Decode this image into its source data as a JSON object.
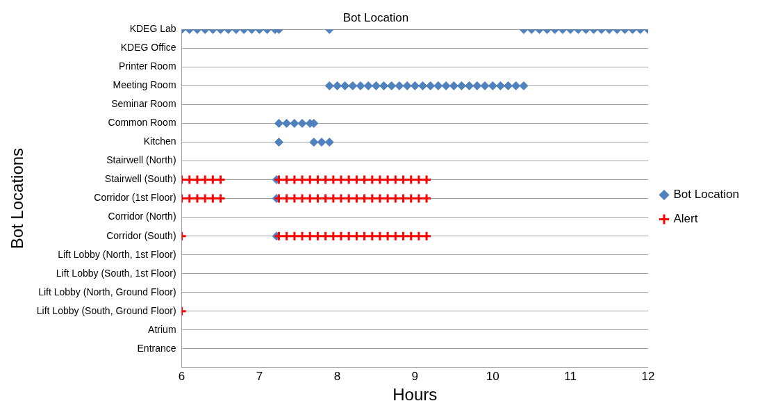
{
  "chart_data": {
    "type": "scatter",
    "orientation": "horizontal",
    "title": "Bot Location",
    "xlabel": "Hours",
    "ylabel": "Bot Locations",
    "xlim": [
      6,
      12
    ],
    "xticks": [
      6,
      7,
      8,
      9,
      10,
      11,
      12
    ],
    "categories": [
      "KDEG Lab",
      "KDEG Office",
      "Printer Room",
      "Meeting Room",
      "Seminar Room",
      "Common Room",
      "Kitchen",
      "Stairwell (North)",
      "Stairwell (South)",
      "Corridor (1st Floor)",
      "Corridor (North)",
      "Corridor (South)",
      "Lift Lobby (North, 1st Floor)",
      "Lift Lobby (South, 1st Floor)",
      "Lift Lobby (North, Ground Floor)",
      "Lift Lobby (South, Ground Floor)",
      "Atrium",
      "Entrance"
    ],
    "grid": "y",
    "legend": "right",
    "series": [
      {
        "name": "Bot Location",
        "color": "#4f81bd",
        "marker": "diamond",
        "x": [
          "KDEG Lab",
          "KDEG Lab",
          "KDEG Lab",
          "KDEG Lab",
          "KDEG Lab",
          "KDEG Lab",
          "KDEG Lab",
          "KDEG Lab",
          "KDEG Lab",
          "KDEG Lab",
          "KDEG Lab",
          "KDEG Lab",
          "KDEG Lab",
          "KDEG Lab",
          "KDEG Lab",
          "KDEG Lab",
          "KDEG Lab",
          "KDEG Lab",
          "KDEG Lab",
          "KDEG Lab",
          "KDEG Lab",
          "KDEG Lab",
          "KDEG Lab",
          "KDEG Lab",
          "KDEG Lab",
          "KDEG Lab",
          "KDEG Lab",
          "KDEG Lab",
          "KDEG Lab",
          "KDEG Lab",
          "KDEG Lab",
          "KDEG Lab",
          "Meeting Room",
          "Meeting Room",
          "Meeting Room",
          "Meeting Room",
          "Meeting Room",
          "Meeting Room",
          "Meeting Room",
          "Meeting Room",
          "Meeting Room",
          "Meeting Room",
          "Meeting Room",
          "Meeting Room",
          "Meeting Room",
          "Meeting Room",
          "Meeting Room",
          "Meeting Room",
          "Meeting Room",
          "Meeting Room",
          "Meeting Room",
          "Meeting Room",
          "Meeting Room",
          "Meeting Room",
          "Meeting Room",
          "Meeting Room",
          "Meeting Room",
          "Meeting Room",
          "Common Room",
          "Common Room",
          "Common Room",
          "Common Room",
          "Common Room",
          "Common Room",
          "Kitchen",
          "Kitchen",
          "Kitchen",
          "Kitchen",
          "Stairwell (South)",
          "Corridor (1st Floor)",
          "Corridor (South)"
        ],
        "values": [
          6.0,
          6.1,
          6.2,
          6.3,
          6.4,
          6.5,
          6.6,
          6.7,
          6.8,
          6.9,
          7.0,
          7.1,
          7.2,
          7.25,
          7.9,
          10.4,
          10.5,
          10.6,
          10.7,
          10.8,
          10.9,
          11.0,
          11.1,
          11.2,
          11.3,
          11.4,
          11.5,
          11.6,
          11.7,
          11.8,
          11.9,
          12.0,
          7.9,
          8.0,
          8.1,
          8.2,
          8.3,
          8.4,
          8.5,
          8.6,
          8.7,
          8.8,
          8.9,
          9.0,
          9.1,
          9.2,
          9.3,
          9.4,
          9.5,
          9.6,
          9.7,
          9.8,
          9.9,
          10.0,
          10.1,
          10.2,
          10.3,
          10.4,
          7.25,
          7.35,
          7.45,
          7.55,
          7.65,
          7.7,
          7.25,
          7.7,
          7.8,
          7.9,
          7.22,
          7.22,
          7.22
        ]
      },
      {
        "name": "Alert",
        "color": "#ff0000",
        "marker": "cross",
        "x": [
          "Stairwell (South)",
          "Stairwell (South)",
          "Stairwell (South)",
          "Stairwell (South)",
          "Stairwell (South)",
          "Stairwell (South)",
          "Stairwell (South)",
          "Stairwell (South)",
          "Stairwell (South)",
          "Stairwell (South)",
          "Stairwell (South)",
          "Stairwell (South)",
          "Stairwell (South)",
          "Stairwell (South)",
          "Stairwell (South)",
          "Stairwell (South)",
          "Stairwell (South)",
          "Stairwell (South)",
          "Stairwell (South)",
          "Stairwell (South)",
          "Stairwell (South)",
          "Stairwell (South)",
          "Stairwell (South)",
          "Stairwell (South)",
          "Stairwell (South)",
          "Stairwell (South)",
          "Corridor (1st Floor)",
          "Corridor (1st Floor)",
          "Corridor (1st Floor)",
          "Corridor (1st Floor)",
          "Corridor (1st Floor)",
          "Corridor (1st Floor)",
          "Corridor (1st Floor)",
          "Corridor (1st Floor)",
          "Corridor (1st Floor)",
          "Corridor (1st Floor)",
          "Corridor (1st Floor)",
          "Corridor (1st Floor)",
          "Corridor (1st Floor)",
          "Corridor (1st Floor)",
          "Corridor (1st Floor)",
          "Corridor (1st Floor)",
          "Corridor (1st Floor)",
          "Corridor (1st Floor)",
          "Corridor (1st Floor)",
          "Corridor (1st Floor)",
          "Corridor (1st Floor)",
          "Corridor (1st Floor)",
          "Corridor (1st Floor)",
          "Corridor (1st Floor)",
          "Corridor (1st Floor)",
          "Corridor (1st Floor)",
          "Corridor (South)",
          "Corridor (South)",
          "Corridor (South)",
          "Corridor (South)",
          "Corridor (South)",
          "Corridor (South)",
          "Corridor (South)",
          "Corridor (South)",
          "Corridor (South)",
          "Corridor (South)",
          "Corridor (South)",
          "Corridor (South)",
          "Corridor (South)",
          "Corridor (South)",
          "Corridor (South)",
          "Corridor (South)",
          "Corridor (South)",
          "Corridor (South)",
          "Corridor (South)",
          "Corridor (South)",
          "Corridor (South)",
          "Lift Lobby (South, Ground Floor)"
        ],
        "values": [
          6.0,
          6.1,
          6.2,
          6.3,
          6.4,
          6.5,
          7.25,
          7.35,
          7.45,
          7.55,
          7.65,
          7.75,
          7.85,
          7.95,
          8.05,
          8.15,
          8.25,
          8.35,
          8.45,
          8.55,
          8.65,
          8.75,
          8.85,
          8.95,
          9.05,
          9.15,
          6.0,
          6.1,
          6.2,
          6.3,
          6.4,
          6.5,
          7.25,
          7.35,
          7.45,
          7.55,
          7.65,
          7.75,
          7.85,
          7.95,
          8.05,
          8.15,
          8.25,
          8.35,
          8.45,
          8.55,
          8.65,
          8.75,
          8.85,
          8.95,
          9.05,
          9.15,
          6.0,
          7.25,
          7.35,
          7.45,
          7.55,
          7.65,
          7.75,
          7.85,
          7.95,
          8.05,
          8.15,
          8.25,
          8.35,
          8.45,
          8.55,
          8.65,
          8.75,
          8.85,
          8.95,
          9.05,
          9.15,
          6.0
        ]
      }
    ]
  }
}
